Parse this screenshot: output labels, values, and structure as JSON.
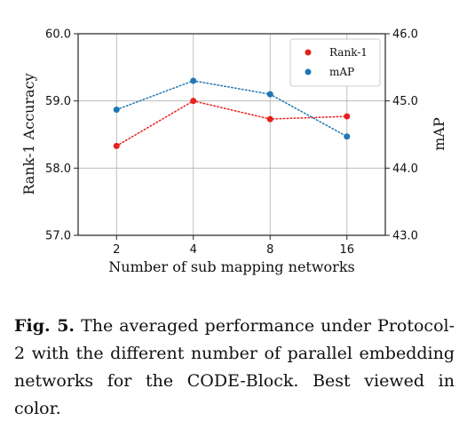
{
  "chart_data": {
    "type": "line",
    "x_categories": [
      "2",
      "4",
      "8",
      "16"
    ],
    "xlabel": "Number of sub mapping networks",
    "ylabel_left": "Rank-1 Accuracy",
    "ylabel_right": "mAP",
    "ylim_left": [
      57.0,
      60.0
    ],
    "ylim_right": [
      43.0,
      46.0
    ],
    "yticks_left": [
      "57.0",
      "58.0",
      "59.0",
      "60.0"
    ],
    "yticks_right": [
      "43.0",
      "44.0",
      "45.0",
      "46.0"
    ],
    "grid": true,
    "legend_position": "top-right",
    "series": [
      {
        "name": "Rank-1",
        "axis": "left",
        "color": "#e8211c",
        "line_style": "dotted",
        "values": [
          58.33,
          59.0,
          58.73,
          58.77
        ]
      },
      {
        "name": "mAP",
        "axis": "right",
        "color": "#1f77b4",
        "line_style": "dotted",
        "values": [
          44.87,
          45.3,
          45.1,
          44.47
        ]
      }
    ]
  },
  "caption": {
    "label": "Fig. 5.",
    "text": "The averaged performance under Protocol-2 with the different number of parallel embedding networks for the CODE-Block. Best viewed in color."
  }
}
